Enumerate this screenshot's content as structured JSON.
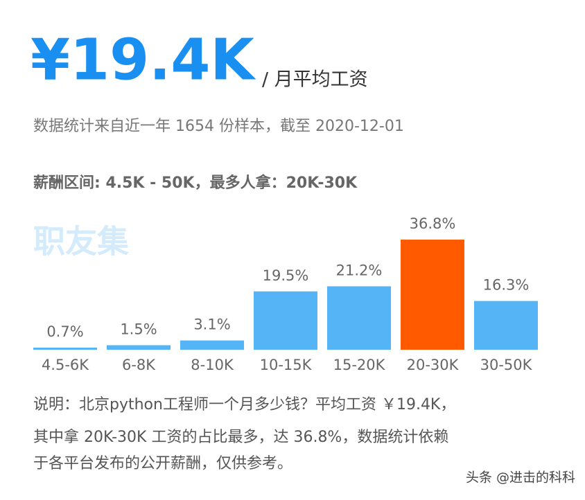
{
  "header": {
    "price": "¥19.4K",
    "price_unit": "/ 月平均工资",
    "source": "数据统计来自近一年 1654 份样本，截至 2020-12-01",
    "range": "薪酬区间: 4.5K - 50K，最多人拿：20K-30K"
  },
  "watermark": "职友集",
  "chart_data": {
    "type": "bar",
    "categories": [
      "4.5-6K",
      "6-8K",
      "8-10K",
      "10-15K",
      "15-20K",
      "20-30K",
      "30-50K"
    ],
    "values": [
      0.7,
      1.5,
      3.1,
      19.5,
      21.2,
      36.8,
      16.3
    ],
    "value_labels": [
      "0.7%",
      "1.5%",
      "3.1%",
      "19.5%",
      "21.2%",
      "36.8%",
      "16.3%"
    ],
    "colors": [
      "#55b4f5",
      "#55b4f5",
      "#55b4f5",
      "#55b4f5",
      "#55b4f5",
      "#ff5a00",
      "#55b4f5"
    ]
  },
  "note": [
    "说明：北京python工程师一个月多少钱？平均工资 ￥19.4K，",
    "其中拿 20K-30K 工资的占比最多，达 36.8%，数据统计依赖",
    "于各平台发布的公开薪酬，仅供参考。"
  ],
  "credit": "头条 @进击的科科"
}
